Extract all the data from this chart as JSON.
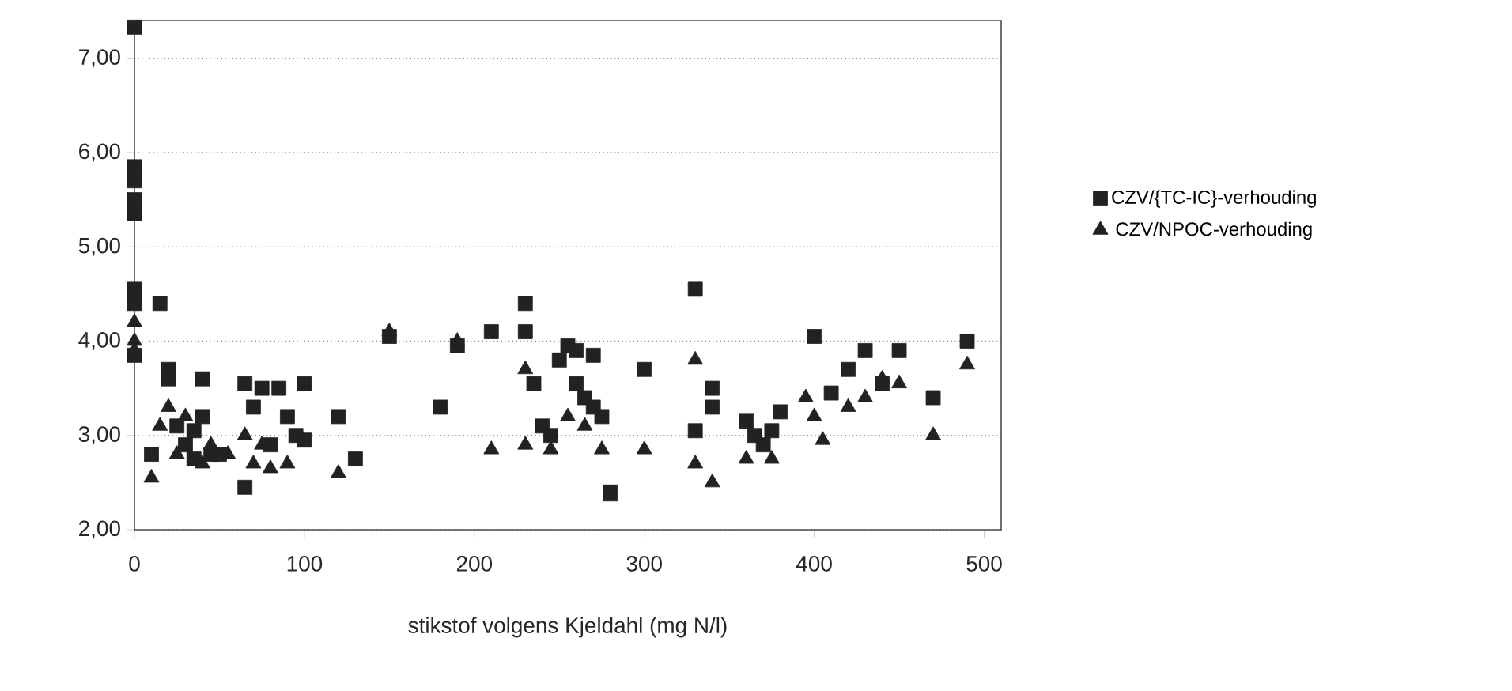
{
  "chart_data": {
    "type": "scatter",
    "xlabel": "stikstof volgens Kjeldahl (mg N/l)",
    "xlim": [
      0,
      510
    ],
    "ylim": [
      2,
      7.4
    ],
    "xticks": [
      0,
      100,
      200,
      300,
      400,
      500
    ],
    "yticks": [
      {
        "value": 2,
        "label": "2,00"
      },
      {
        "value": 3,
        "label": "3,00"
      },
      {
        "value": 4,
        "label": "4,00"
      },
      {
        "value": 5,
        "label": "5,00"
      },
      {
        "value": 6,
        "label": "6,00"
      },
      {
        "value": 7,
        "label": "7,00"
      }
    ],
    "grid": "y",
    "legend": "right",
    "series": [
      {
        "name": "CZV/{TC-IC}-verhouding",
        "color": "#222222",
        "marker": "square",
        "x": [
          0,
          0,
          0,
          0,
          0,
          0,
          0,
          0,
          10,
          15,
          20,
          20,
          25,
          30,
          35,
          35,
          40,
          40,
          45,
          50,
          65,
          65,
          70,
          75,
          80,
          85,
          90,
          95,
          100,
          100,
          120,
          130,
          150,
          180,
          190,
          210,
          230,
          230,
          235,
          240,
          245,
          250,
          255,
          260,
          260,
          265,
          270,
          270,
          275,
          280,
          300,
          330,
          330,
          340,
          340,
          360,
          365,
          370,
          375,
          380,
          400,
          410,
          420,
          430,
          440,
          450,
          470,
          490
        ],
        "values": [
          7.33,
          5.85,
          5.7,
          5.5,
          5.35,
          4.55,
          4.4,
          3.85,
          2.8,
          4.4,
          3.7,
          3.6,
          3.1,
          2.9,
          3.05,
          2.75,
          3.6,
          3.2,
          2.8,
          2.8,
          3.55,
          2.45,
          3.3,
          3.5,
          2.9,
          3.5,
          3.2,
          3.0,
          3.55,
          2.95,
          3.2,
          2.75,
          4.05,
          3.3,
          3.95,
          4.1,
          4.4,
          4.1,
          3.55,
          3.1,
          3.0,
          3.8,
          3.95,
          3.9,
          3.55,
          3.4,
          3.85,
          3.3,
          3.2,
          2.4,
          3.7,
          4.55,
          3.05,
          3.5,
          3.3,
          3.15,
          3.0,
          2.9,
          3.05,
          3.25,
          4.05,
          3.45,
          3.7,
          3.9,
          3.55,
          3.9,
          3.4,
          4.0
        ]
      },
      {
        "name": "CZV/NPOC-verhouding",
        "color": "#222222",
        "marker": "triangle",
        "x": [
          0,
          0,
          0,
          10,
          15,
          20,
          25,
          30,
          40,
          45,
          55,
          65,
          70,
          75,
          80,
          90,
          120,
          150,
          190,
          210,
          230,
          230,
          245,
          255,
          265,
          275,
          280,
          300,
          330,
          330,
          340,
          360,
          375,
          395,
          400,
          405,
          420,
          430,
          440,
          450,
          470,
          490
        ],
        "values": [
          4.2,
          4.0,
          3.9,
          2.55,
          3.1,
          3.3,
          2.8,
          3.2,
          2.7,
          2.9,
          2.8,
          3.0,
          2.7,
          2.9,
          2.65,
          2.7,
          2.6,
          4.1,
          4.0,
          2.85,
          3.7,
          2.9,
          2.85,
          3.2,
          3.1,
          2.85,
          2.35,
          2.85,
          3.8,
          2.7,
          2.5,
          2.75,
          2.75,
          3.4,
          3.2,
          2.95,
          3.3,
          3.4,
          3.6,
          3.55,
          3.0,
          3.75
        ]
      }
    ]
  }
}
